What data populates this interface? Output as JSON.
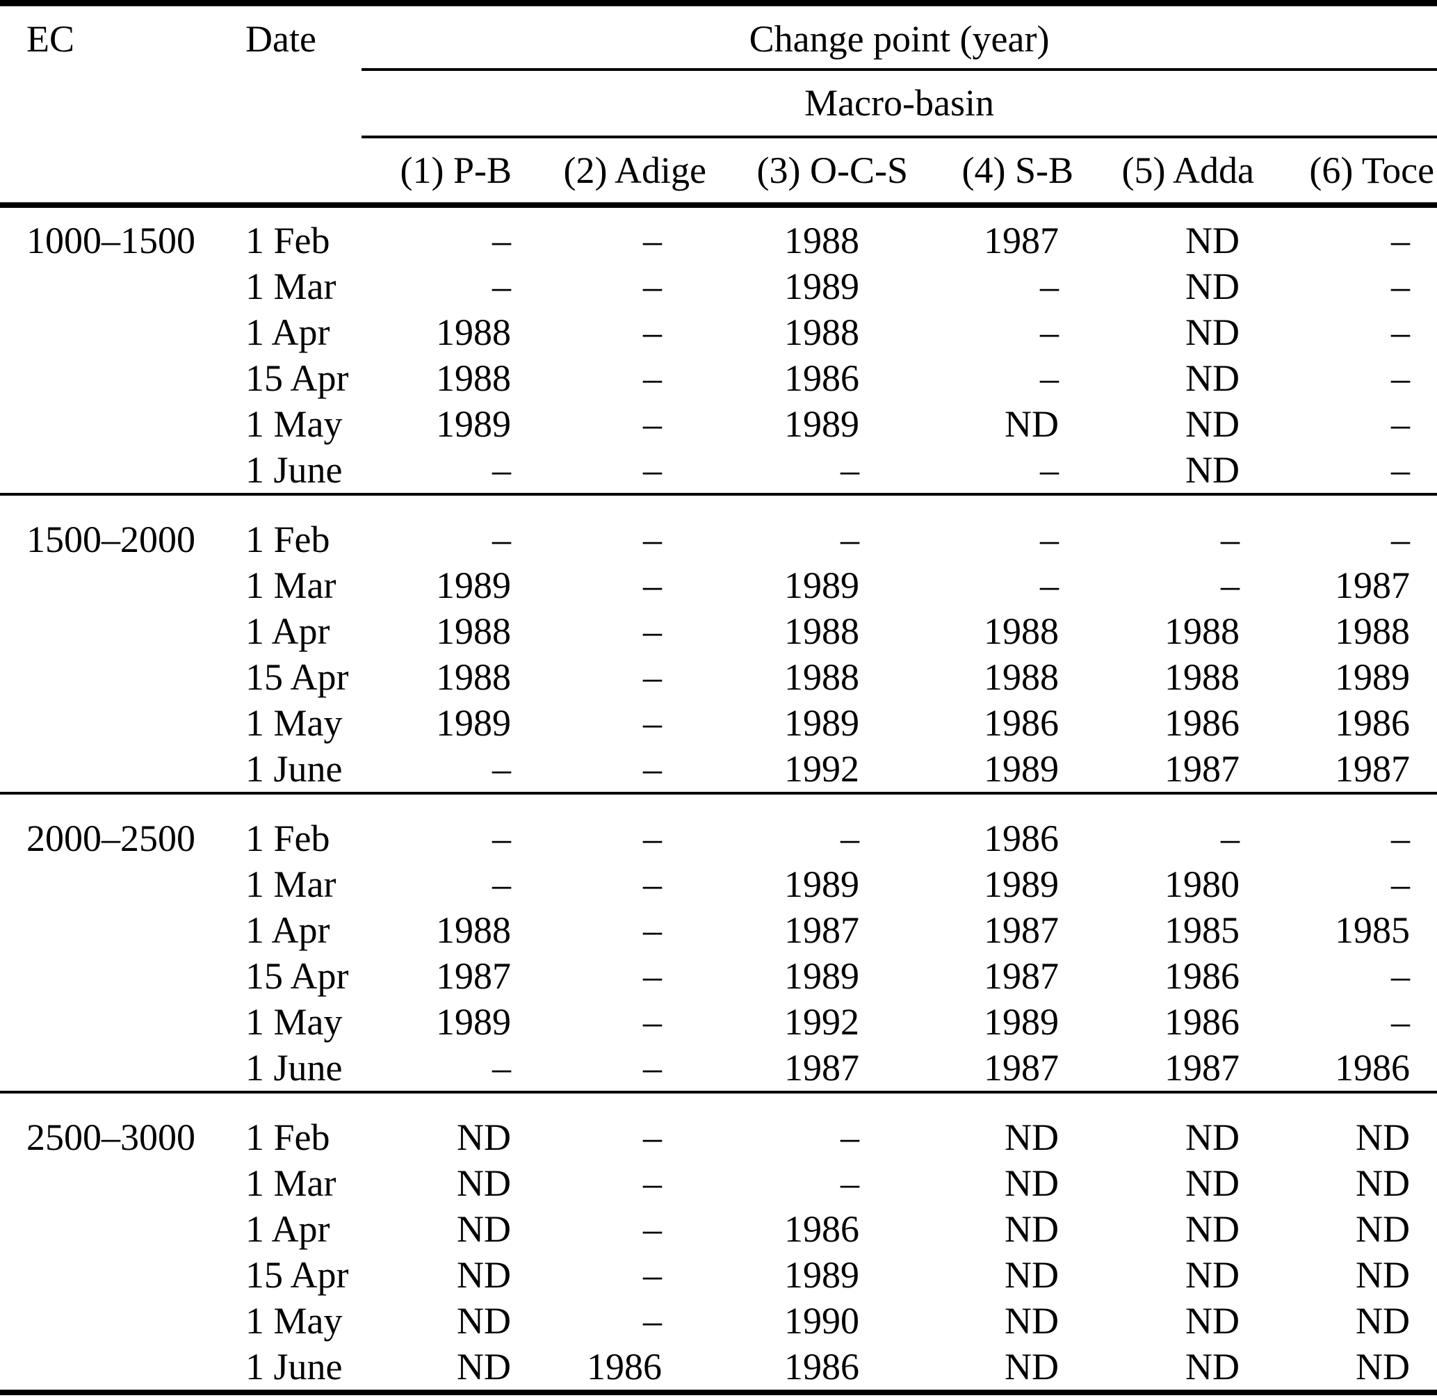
{
  "page": {
    "background_color": "#ffffff",
    "text_color": "#000000",
    "rule_color": "#000000"
  },
  "table": {
    "header": {
      "ec": "EC",
      "date": "Date",
      "change_point": "Change point (year)",
      "macro_basin": "Macro-basin",
      "basins": [
        "(1) P-B",
        "(2) Adige",
        "(3) O-C-S",
        "(4) S-B",
        "(5) Adda",
        "(6) Toce"
      ]
    },
    "groups": [
      {
        "ec": "1000–1500",
        "rows": [
          {
            "date": "1 Feb",
            "values": [
              "–",
              "–",
              "1988",
              "1987",
              "ND",
              "–"
            ]
          },
          {
            "date": "1 Mar",
            "values": [
              "–",
              "–",
              "1989",
              "–",
              "ND",
              "–"
            ]
          },
          {
            "date": "1 Apr",
            "values": [
              "1988",
              "–",
              "1988",
              "–",
              "ND",
              "–"
            ]
          },
          {
            "date": "15 Apr",
            "values": [
              "1988",
              "–",
              "1986",
              "–",
              "ND",
              "–"
            ]
          },
          {
            "date": "1 May",
            "values": [
              "1989",
              "–",
              "1989",
              "ND",
              "ND",
              "–"
            ]
          },
          {
            "date": "1 June",
            "values": [
              "–",
              "–",
              "–",
              "–",
              "ND",
              "–"
            ]
          }
        ]
      },
      {
        "ec": "1500–2000",
        "rows": [
          {
            "date": "1 Feb",
            "values": [
              "–",
              "–",
              "–",
              "–",
              "–",
              "–"
            ]
          },
          {
            "date": "1 Mar",
            "values": [
              "1989",
              "–",
              "1989",
              "–",
              "–",
              "1987"
            ]
          },
          {
            "date": "1 Apr",
            "values": [
              "1988",
              "–",
              "1988",
              "1988",
              "1988",
              "1988"
            ]
          },
          {
            "date": "15 Apr",
            "values": [
              "1988",
              "–",
              "1988",
              "1988",
              "1988",
              "1989"
            ]
          },
          {
            "date": "1 May",
            "values": [
              "1989",
              "–",
              "1989",
              "1986",
              "1986",
              "1986"
            ]
          },
          {
            "date": "1 June",
            "values": [
              "–",
              "–",
              "1992",
              "1989",
              "1987",
              "1987"
            ]
          }
        ]
      },
      {
        "ec": "2000–2500",
        "rows": [
          {
            "date": "1 Feb",
            "values": [
              "–",
              "–",
              "–",
              "1986",
              "–",
              "–"
            ]
          },
          {
            "date": "1 Mar",
            "values": [
              "–",
              "–",
              "1989",
              "1989",
              "1980",
              "–"
            ]
          },
          {
            "date": "1 Apr",
            "values": [
              "1988",
              "–",
              "1987",
              "1987",
              "1985",
              "1985"
            ]
          },
          {
            "date": "15 Apr",
            "values": [
              "1987",
              "–",
              "1989",
              "1987",
              "1986",
              "–"
            ]
          },
          {
            "date": "1 May",
            "values": [
              "1989",
              "–",
              "1992",
              "1989",
              "1986",
              "–"
            ]
          },
          {
            "date": "1 June",
            "values": [
              "–",
              "–",
              "1987",
              "1987",
              "1987",
              "1986"
            ]
          }
        ]
      },
      {
        "ec": "2500–3000",
        "rows": [
          {
            "date": "1 Feb",
            "values": [
              "ND",
              "–",
              "–",
              "ND",
              "ND",
              "ND"
            ]
          },
          {
            "date": "1 Mar",
            "values": [
              "ND",
              "–",
              "–",
              "ND",
              "ND",
              "ND"
            ]
          },
          {
            "date": "1 Apr",
            "values": [
              "ND",
              "–",
              "1986",
              "ND",
              "ND",
              "ND"
            ]
          },
          {
            "date": "15 Apr",
            "values": [
              "ND",
              "–",
              "1989",
              "ND",
              "ND",
              "ND"
            ]
          },
          {
            "date": "1 May",
            "values": [
              "ND",
              "–",
              "1990",
              "ND",
              "ND",
              "ND"
            ]
          },
          {
            "date": "1 June",
            "values": [
              "ND",
              "1986",
              "1986",
              "ND",
              "ND",
              "ND"
            ]
          }
        ]
      }
    ]
  },
  "chart_data": {
    "type": "table",
    "title": "Change point (year)",
    "subtitle": "Macro-basin",
    "columns": [
      "EC",
      "Date",
      "(1) P-B",
      "(2) Adige",
      "(3) O-C-S",
      "(4) S-B",
      "(5) Adda",
      "(6) Toce"
    ],
    "rows": [
      [
        "1000–1500",
        "1 Feb",
        "–",
        "–",
        "1988",
        "1987",
        "ND",
        "–"
      ],
      [
        "",
        "1 Mar",
        "–",
        "–",
        "1989",
        "–",
        "ND",
        "–"
      ],
      [
        "",
        "1 Apr",
        "1988",
        "–",
        "1988",
        "–",
        "ND",
        "–"
      ],
      [
        "",
        "15 Apr",
        "1988",
        "–",
        "1986",
        "–",
        "ND",
        "–"
      ],
      [
        "",
        "1 May",
        "1989",
        "–",
        "1989",
        "ND",
        "ND",
        "–"
      ],
      [
        "",
        "1 June",
        "–",
        "–",
        "–",
        "–",
        "ND",
        "–"
      ],
      [
        "1500–2000",
        "1 Feb",
        "–",
        "–",
        "–",
        "–",
        "–",
        "–"
      ],
      [
        "",
        "1 Mar",
        "1989",
        "–",
        "1989",
        "–",
        "–",
        "1987"
      ],
      [
        "",
        "1 Apr",
        "1988",
        "–",
        "1988",
        "1988",
        "1988",
        "1988"
      ],
      [
        "",
        "15 Apr",
        "1988",
        "–",
        "1988",
        "1988",
        "1988",
        "1989"
      ],
      [
        "",
        "1 May",
        "1989",
        "–",
        "1989",
        "1986",
        "1986",
        "1986"
      ],
      [
        "",
        "1 June",
        "–",
        "–",
        "1992",
        "1989",
        "1987",
        "1987"
      ],
      [
        "2000–2500",
        "1 Feb",
        "–",
        "–",
        "–",
        "1986",
        "–",
        "–"
      ],
      [
        "",
        "1 Mar",
        "–",
        "–",
        "1989",
        "1989",
        "1980",
        "–"
      ],
      [
        "",
        "1 Apr",
        "1988",
        "–",
        "1987",
        "1987",
        "1985",
        "1985"
      ],
      [
        "",
        "15 Apr",
        "1987",
        "–",
        "1989",
        "1987",
        "1986",
        "–"
      ],
      [
        "",
        "1 May",
        "1989",
        "–",
        "1992",
        "1989",
        "1986",
        "–"
      ],
      [
        "",
        "1 June",
        "–",
        "–",
        "1987",
        "1987",
        "1987",
        "1986"
      ],
      [
        "2500–3000",
        "1 Feb",
        "ND",
        "–",
        "–",
        "ND",
        "ND",
        "ND"
      ],
      [
        "",
        "1 Mar",
        "ND",
        "–",
        "–",
        "ND",
        "ND",
        "ND"
      ],
      [
        "",
        "1 Apr",
        "ND",
        "–",
        "1986",
        "ND",
        "ND",
        "ND"
      ],
      [
        "",
        "15 Apr",
        "ND",
        "–",
        "1989",
        "ND",
        "ND",
        "ND"
      ],
      [
        "",
        "1 May",
        "ND",
        "–",
        "1990",
        "ND",
        "ND",
        "ND"
      ],
      [
        "",
        "1 June",
        "ND",
        "1986",
        "1986",
        "ND",
        "ND",
        "ND"
      ]
    ]
  }
}
